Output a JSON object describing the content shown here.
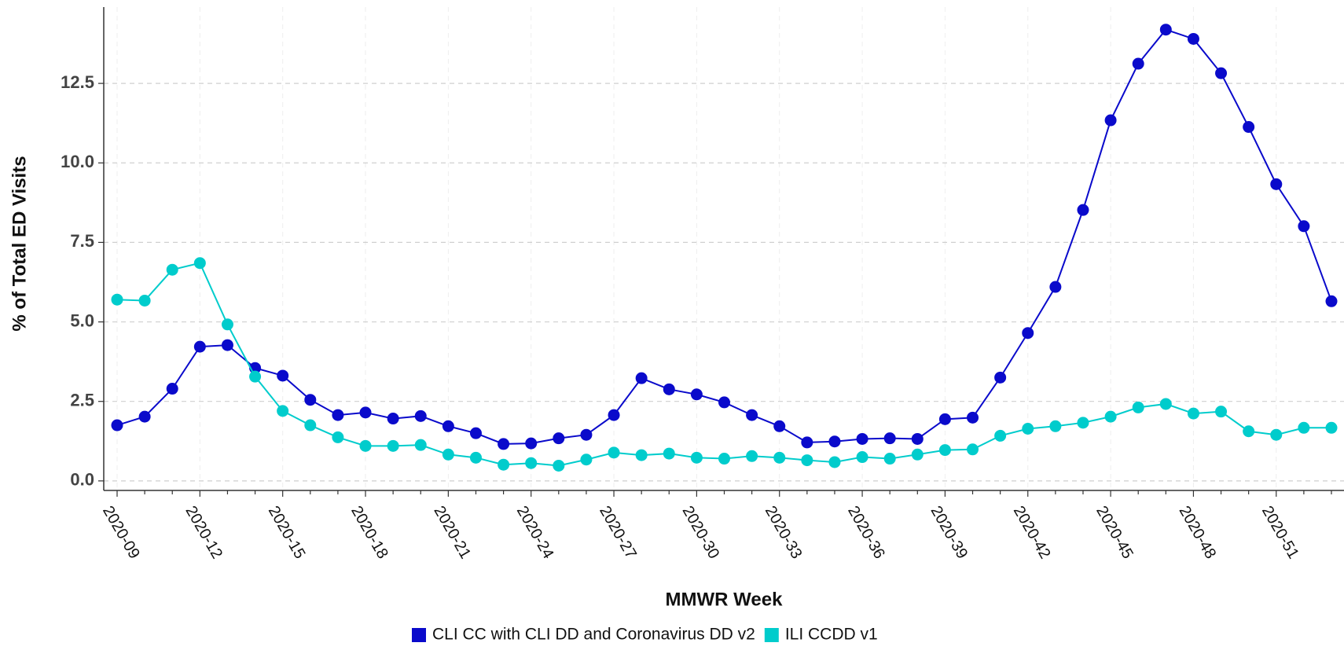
{
  "chart_data": {
    "type": "line",
    "x_label": "MMWR Week",
    "y_label": "% of Total ED Visits",
    "categories": [
      "2020-09",
      null,
      null,
      "2020-12",
      null,
      null,
      "2020-15",
      null,
      null,
      "2020-18",
      null,
      null,
      "2020-21",
      null,
      null,
      "2020-24",
      null,
      null,
      "2020-27",
      null,
      null,
      "2020-30",
      null,
      null,
      "2020-33",
      null,
      null,
      "2020-36",
      null,
      null,
      "2020-39",
      null,
      null,
      "2020-42",
      null,
      null,
      "2020-45",
      null,
      null,
      "2020-48",
      null,
      null,
      "2020-51",
      null,
      null
    ],
    "series": [
      {
        "name": "CLI CC with CLI DD and Coronavirus DD v2",
        "color": "#0a0acb",
        "values": [
          1.75,
          2.02,
          2.9,
          4.22,
          4.27,
          3.55,
          3.31,
          2.55,
          2.07,
          2.15,
          1.96,
          2.04,
          1.72,
          1.5,
          1.16,
          1.18,
          1.34,
          1.45,
          2.07,
          3.23,
          2.88,
          2.72,
          2.47,
          2.07,
          1.72,
          1.21,
          1.24,
          1.32,
          1.34,
          1.32,
          1.94,
          1.99,
          3.25,
          4.65,
          6.1,
          8.52,
          11.34,
          13.12,
          14.19,
          13.9,
          12.82,
          11.13,
          9.33,
          8.01,
          5.65
        ]
      },
      {
        "name": "ILI CCDD v1",
        "color": "#00cccc",
        "values": [
          5.7,
          5.67,
          6.64,
          6.85,
          4.92,
          3.28,
          2.2,
          1.75,
          1.37,
          1.1,
          1.1,
          1.13,
          0.83,
          0.73,
          0.51,
          0.56,
          0.48,
          0.67,
          0.89,
          0.81,
          0.86,
          0.73,
          0.7,
          0.78,
          0.73,
          0.65,
          0.59,
          0.75,
          0.7,
          0.83,
          0.97,
          0.99,
          1.42,
          1.64,
          1.72,
          1.83,
          2.02,
          2.31,
          2.42,
          2.12,
          2.18,
          1.56,
          1.45,
          1.67,
          1.67
        ]
      }
    ],
    "ylim": [
      -0.3,
      14.9
    ],
    "yticks": [
      {
        "value": 0,
        "label": "0.0"
      },
      2.5,
      {
        "value": 5,
        "label": "5.0"
      },
      7.5,
      {
        "value": 10,
        "label": "10.0"
      },
      12.5
    ],
    "grid": true,
    "legend": "bottom"
  }
}
